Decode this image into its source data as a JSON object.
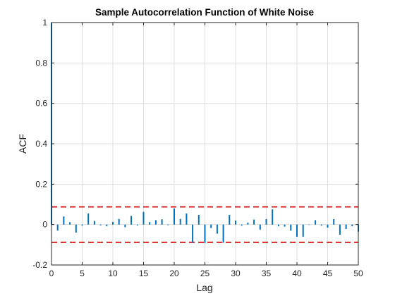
{
  "chart_data": {
    "type": "stem",
    "title": "Sample Autocorrelation Function of White Noise",
    "xlabel": "Lag",
    "ylabel": "ACF",
    "xlim": [
      0,
      50
    ],
    "ylim": [
      -0.2,
      1
    ],
    "xticks": [
      0,
      5,
      10,
      15,
      20,
      25,
      30,
      35,
      40,
      45,
      50
    ],
    "yticks": [
      -0.2,
      0,
      0.2,
      0.4,
      0.6,
      0.8,
      1
    ],
    "xtick_labels": [
      "0",
      "5",
      "10",
      "15",
      "20",
      "25",
      "30",
      "35",
      "40",
      "45",
      "50"
    ],
    "ytick_labels": [
      "-0.2",
      "0",
      "0.2",
      "0.4",
      "0.6",
      "0.8",
      "1"
    ],
    "grid": true,
    "series_color": "#0072BD",
    "bound_color": "#D62728",
    "confidence_bounds": [
      0.088,
      -0.088
    ],
    "lags": [
      0,
      1,
      2,
      3,
      4,
      5,
      6,
      7,
      8,
      9,
      10,
      11,
      12,
      13,
      14,
      15,
      16,
      17,
      18,
      19,
      20,
      21,
      22,
      23,
      24,
      25,
      26,
      27,
      28,
      29,
      30,
      31,
      32,
      33,
      34,
      35,
      36,
      37,
      38,
      39,
      40,
      41,
      42,
      43,
      44,
      45,
      46,
      47,
      48,
      49,
      50
    ],
    "values": [
      1,
      -0.03,
      0.04,
      0.012,
      -0.04,
      -0.005,
      0.055,
      0.018,
      -0.004,
      -0.008,
      0.013,
      0.028,
      -0.013,
      0.043,
      -0.004,
      0.063,
      0.012,
      0.022,
      0.026,
      -0.003,
      0.08,
      0.028,
      0.055,
      -0.09,
      0.048,
      -0.092,
      -0.017,
      -0.045,
      -0.09,
      0.048,
      0.02,
      -0.005,
      0.01,
      0.025,
      -0.025,
      0.027,
      0.075,
      -0.008,
      -0.01,
      -0.03,
      -0.06,
      -0.06,
      -0.002,
      0.022,
      -0.005,
      -0.015,
      0.027,
      -0.05,
      -0.022,
      -0.008,
      -0.035
    ]
  }
}
